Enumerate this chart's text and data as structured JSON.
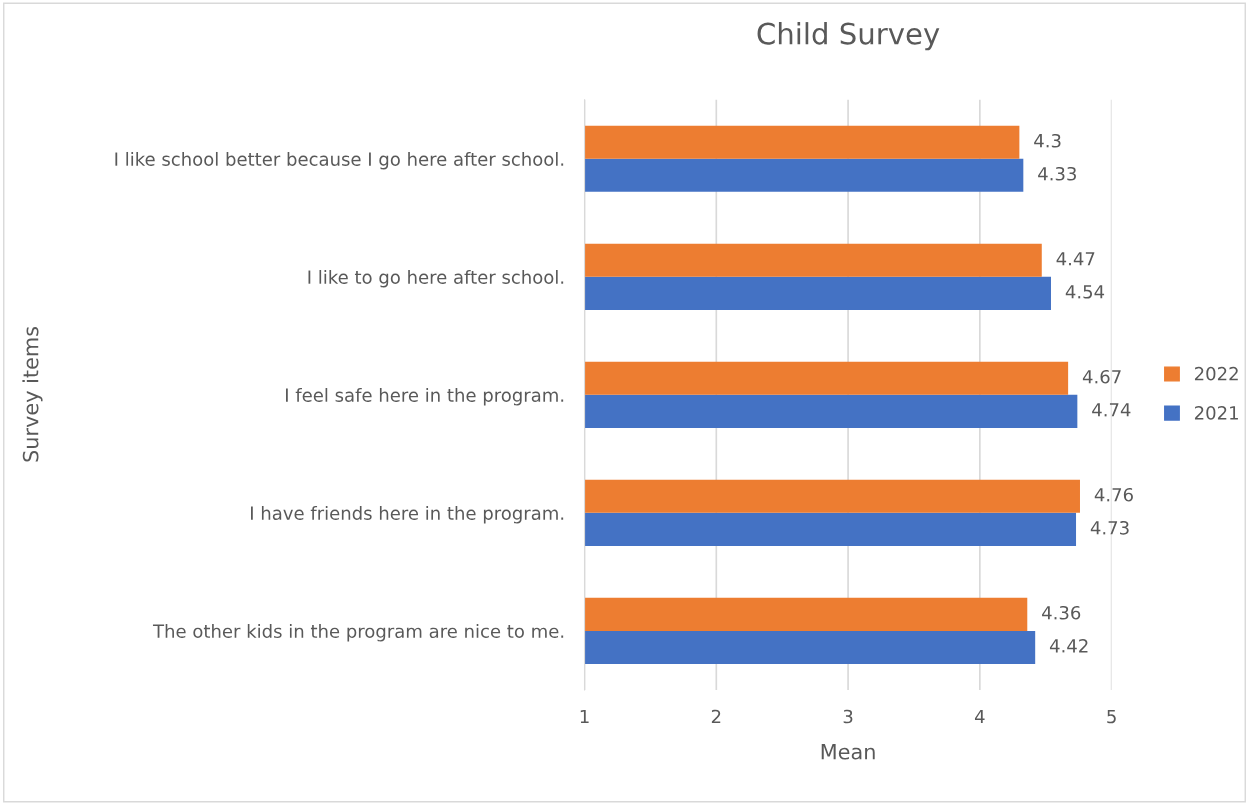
{
  "chart_data": {
    "type": "bar",
    "orientation": "horizontal",
    "title": "Child Survey",
    "xlabel": "Mean",
    "ylabel": "Survey items",
    "categories": [
      "I like school better because I go here after school.",
      "I like to go here after school.",
      "I feel safe here in the program.",
      "I have friends here in the program.",
      "The other kids in the program are nice to me."
    ],
    "series": [
      {
        "name": "2021",
        "color": "#4472c4",
        "values": [
          4.33,
          4.54,
          4.74,
          4.73,
          4.42
        ]
      },
      {
        "name": "2022",
        "color": "#ed7d31",
        "values": [
          4.3,
          4.47,
          4.67,
          4.76,
          4.36
        ]
      }
    ],
    "xlim": [
      1,
      5
    ],
    "xticks": [
      1,
      2,
      3,
      4,
      5
    ],
    "grid": "x",
    "legend": "right",
    "data_labels": true
  }
}
